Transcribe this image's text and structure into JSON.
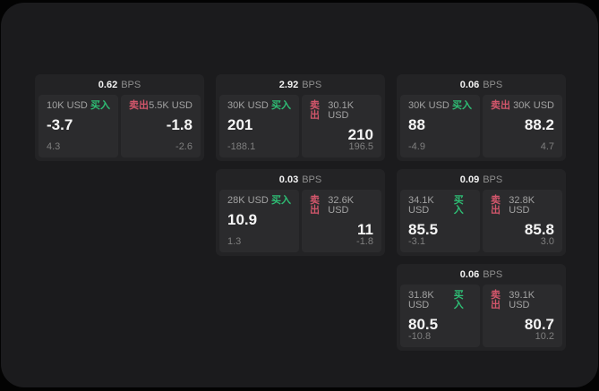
{
  "page": {
    "bps_suffix": "BPS",
    "buy_label": "买入",
    "sell_label": "卖出"
  },
  "colors": {
    "panel_bg": "#1b1b1d",
    "card_bg": "#232325",
    "tile_bg": "#2b2b2d",
    "buy_green": "#2ebd74",
    "sell_red": "#d2566b"
  },
  "cards": [
    {
      "bps": "0.62",
      "buy": {
        "amount": "10K USD",
        "value": "-3.7",
        "delta": "4.3"
      },
      "sell": {
        "amount": "5.5K USD",
        "value": "-1.8",
        "delta": "-2.6"
      }
    },
    {
      "bps": "2.92",
      "buy": {
        "amount": "30K USD",
        "value": "201",
        "delta": "-188.1"
      },
      "sell": {
        "amount": "30.1K USD",
        "value": "210",
        "delta": "196.5"
      }
    },
    {
      "bps": "0.06",
      "buy": {
        "amount": "30K USD",
        "value": "88",
        "delta": "-4.9"
      },
      "sell": {
        "amount": "30K USD",
        "value": "88.2",
        "delta": "4.7"
      }
    },
    {
      "bps": "0.03",
      "buy": {
        "amount": "28K USD",
        "value": "10.9",
        "delta": "1.3"
      },
      "sell": {
        "amount": "32.6K USD",
        "value": "11",
        "delta": "-1.8"
      }
    },
    {
      "bps": "0.09",
      "buy": {
        "amount": "34.1K USD",
        "value": "85.5",
        "delta": "-3.1"
      },
      "sell": {
        "amount": "32.8K USD",
        "value": "85.8",
        "delta": "3.0"
      }
    },
    {
      "bps": "0.06",
      "buy": {
        "amount": "31.8K USD",
        "value": "80.5",
        "delta": "-10.8"
      },
      "sell": {
        "amount": "39.1K USD",
        "value": "80.7",
        "delta": "10.2"
      }
    }
  ]
}
